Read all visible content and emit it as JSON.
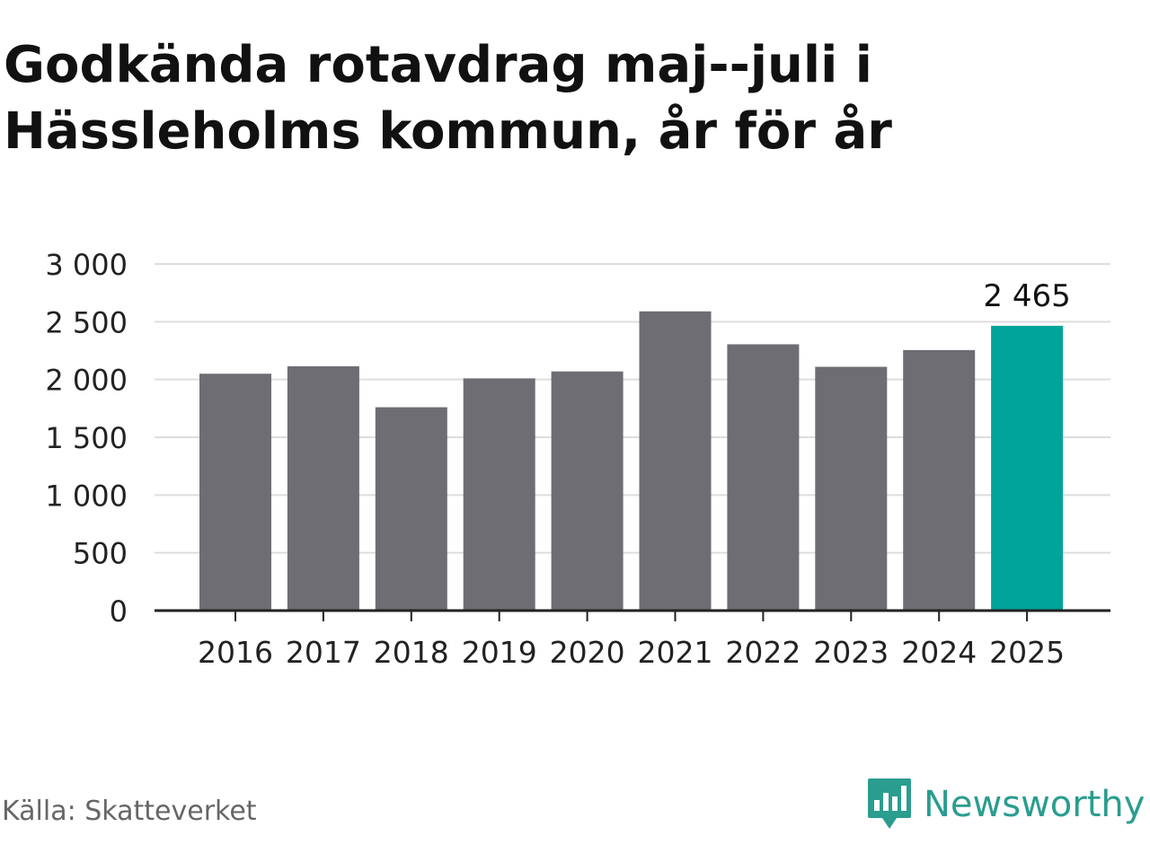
{
  "title_line1": "Godkända rotavdrag maj--juli i",
  "title_line2": "Hässleholms kommun, år för år",
  "source": "Källa: Skatteverket",
  "brand": {
    "name": "Newsworthy",
    "icon": "newsworthy-logo-icon"
  },
  "colors": {
    "bar": "#6e6d73",
    "highlight": "#00a499",
    "grid": "#dddddd",
    "axis": "#222222",
    "brand": "#2a9d8f"
  },
  "chart_data": {
    "type": "bar",
    "categories": [
      "2016",
      "2017",
      "2018",
      "2019",
      "2020",
      "2021",
      "2022",
      "2023",
      "2024",
      "2025"
    ],
    "values": [
      2050,
      2115,
      1760,
      2010,
      2070,
      2590,
      2305,
      2110,
      2255,
      2465
    ],
    "highlight_index": 9,
    "annotation": {
      "category": "2025",
      "label": "2 465"
    },
    "y_ticks": [
      0,
      500,
      1000,
      1500,
      2000,
      2500,
      3000
    ],
    "y_tick_labels": [
      "0",
      "500",
      "1 000",
      "1 500",
      "2 000",
      "2 500",
      "3 000"
    ],
    "ylim": [
      0,
      3000
    ],
    "grid": true,
    "legend": false
  }
}
